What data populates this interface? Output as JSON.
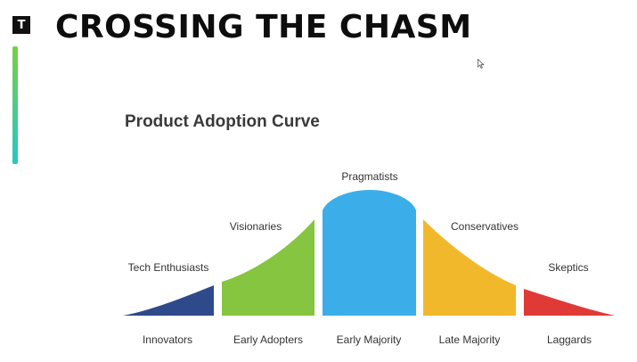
{
  "header": {
    "logo_letter": "T",
    "title": "CROSSING THE CHASM"
  },
  "diagram": {
    "title": "Product Adoption Curve",
    "segments": [
      {
        "group": "Tech Enthusiasts",
        "stage": "Innovators",
        "color": "#2f4a8a"
      },
      {
        "group": "Visionaries",
        "stage": "Early Adopters",
        "color": "#86c540"
      },
      {
        "group": "Pragmatists",
        "stage": "Early Majority",
        "color": "#3baeea"
      },
      {
        "group": "Conservatives",
        "stage": "Late Majority",
        "color": "#f1b82b"
      },
      {
        "group": "Skeptics",
        "stage": "Laggards",
        "color": "#e03a36"
      }
    ]
  },
  "colors": {
    "accent_gradient_top": "#76d13f",
    "accent_gradient_bottom": "#24c8c8"
  }
}
